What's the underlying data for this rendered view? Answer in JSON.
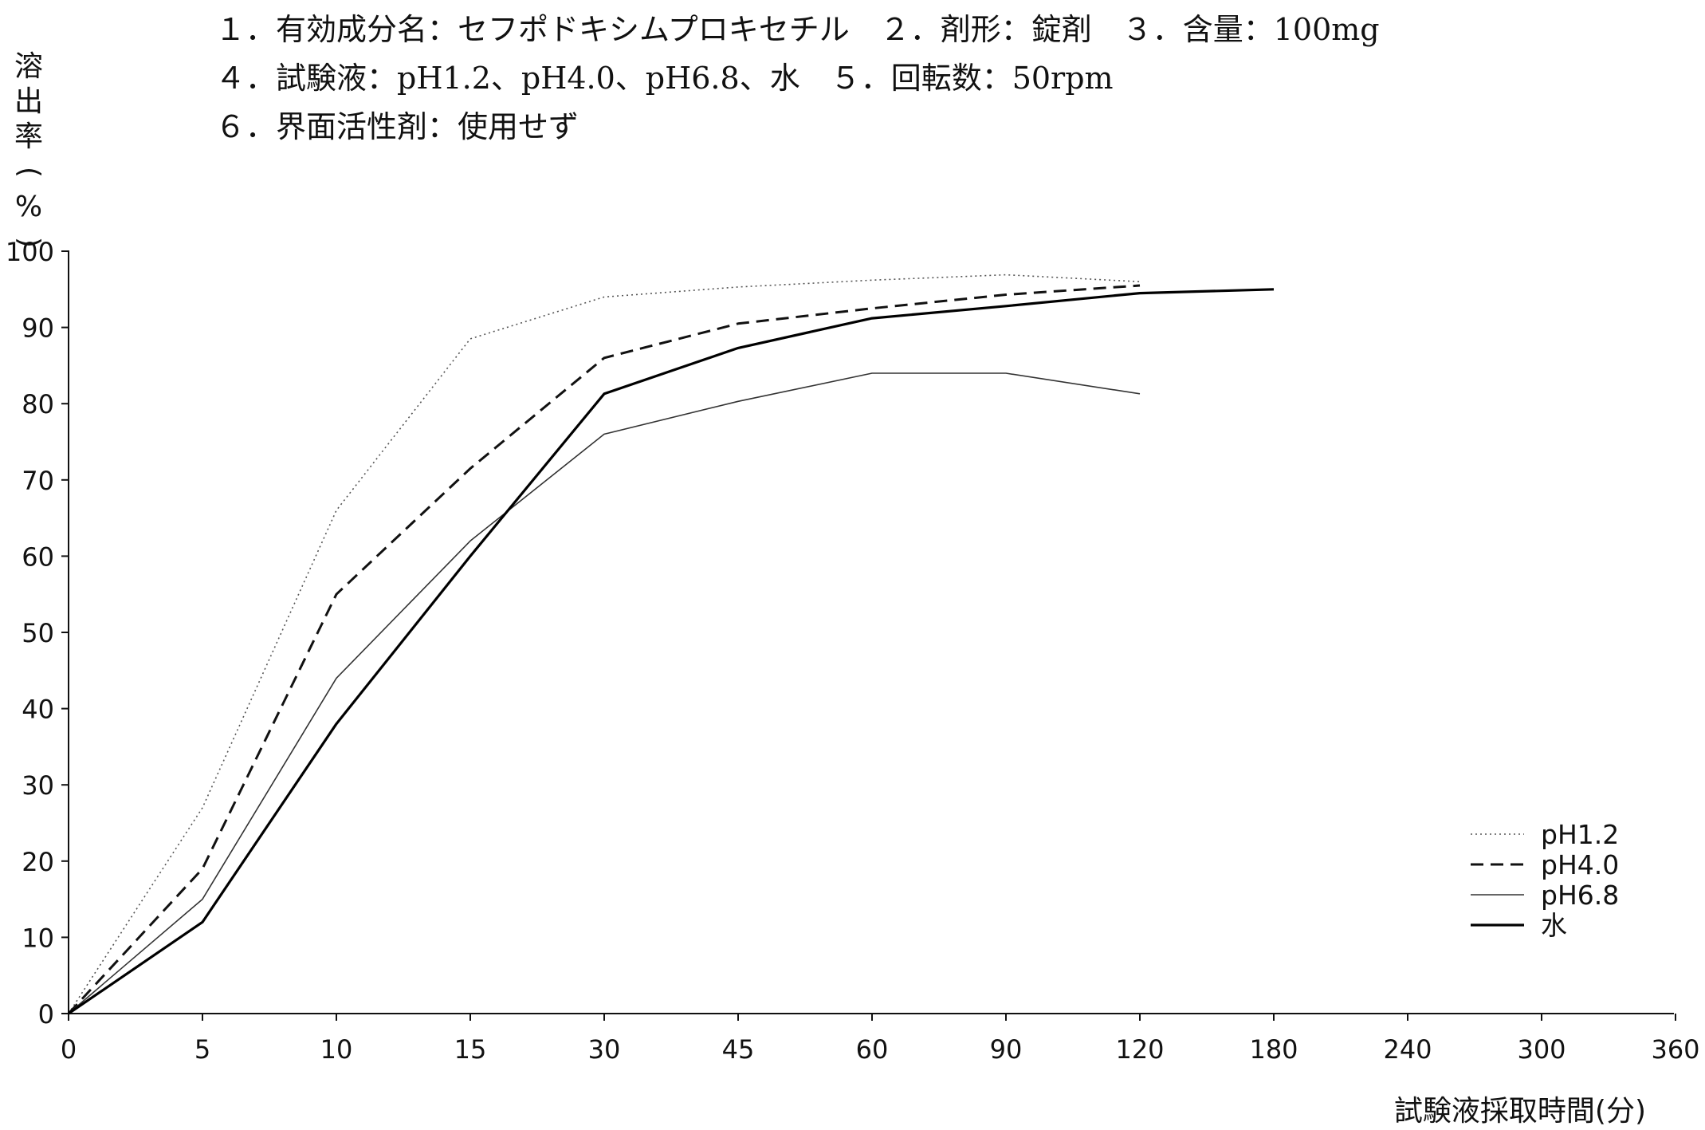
{
  "info_lines": [
    "１．有効成分名：セフポドキシムプロキセチル　２．剤形：錠剤　３．含量：100mg",
    "４．試験液：pH1.2、pH4.0、pH6.8、水　５．回転数：50rpm",
    "６．界面活性剤：使用せず"
  ],
  "chart_data": {
    "type": "line",
    "xlabel": "試験液採取時間(分)",
    "ylabel": "溶出率(%)",
    "ylim": [
      0,
      100
    ],
    "y_ticks": [
      0,
      10,
      20,
      30,
      40,
      50,
      60,
      70,
      80,
      90,
      100
    ],
    "x_ticks": [
      "0",
      "5",
      "10",
      "15",
      "30",
      "45",
      "60",
      "90",
      "120",
      "180",
      "240",
      "300",
      "360"
    ],
    "x_scale": "categorical",
    "grid": false,
    "legend_position": "bottom-right",
    "series": [
      {
        "name": "pH1.2",
        "style": "dotted",
        "color": "#555555",
        "x": [
          0,
          5,
          10,
          15,
          30,
          45,
          60,
          90,
          120
        ],
        "y": [
          0,
          27,
          66,
          88.5,
          94,
          95.3,
          96.2,
          96.9,
          96
        ]
      },
      {
        "name": "pH4.0",
        "style": "dashed",
        "color": "#111111",
        "x": [
          0,
          5,
          10,
          15,
          30,
          45,
          60,
          90,
          120
        ],
        "y": [
          0,
          19,
          55,
          71.5,
          86,
          90.5,
          92.5,
          94.3,
          95.5
        ]
      },
      {
        "name": "pH6.8",
        "style": "thin",
        "color": "#333333",
        "x": [
          0,
          5,
          10,
          15,
          30,
          45,
          60,
          90,
          120
        ],
        "y": [
          0,
          15,
          44,
          62,
          76,
          80.3,
          84,
          84,
          81.3
        ]
      },
      {
        "name": "水",
        "style": "solid",
        "color": "#000000",
        "x": [
          0,
          5,
          10,
          15,
          30,
          45,
          60,
          90,
          120,
          180
        ],
        "y": [
          0,
          12,
          38,
          60,
          81.3,
          87.3,
          91.2,
          92.8,
          94.5,
          95
        ]
      }
    ]
  }
}
